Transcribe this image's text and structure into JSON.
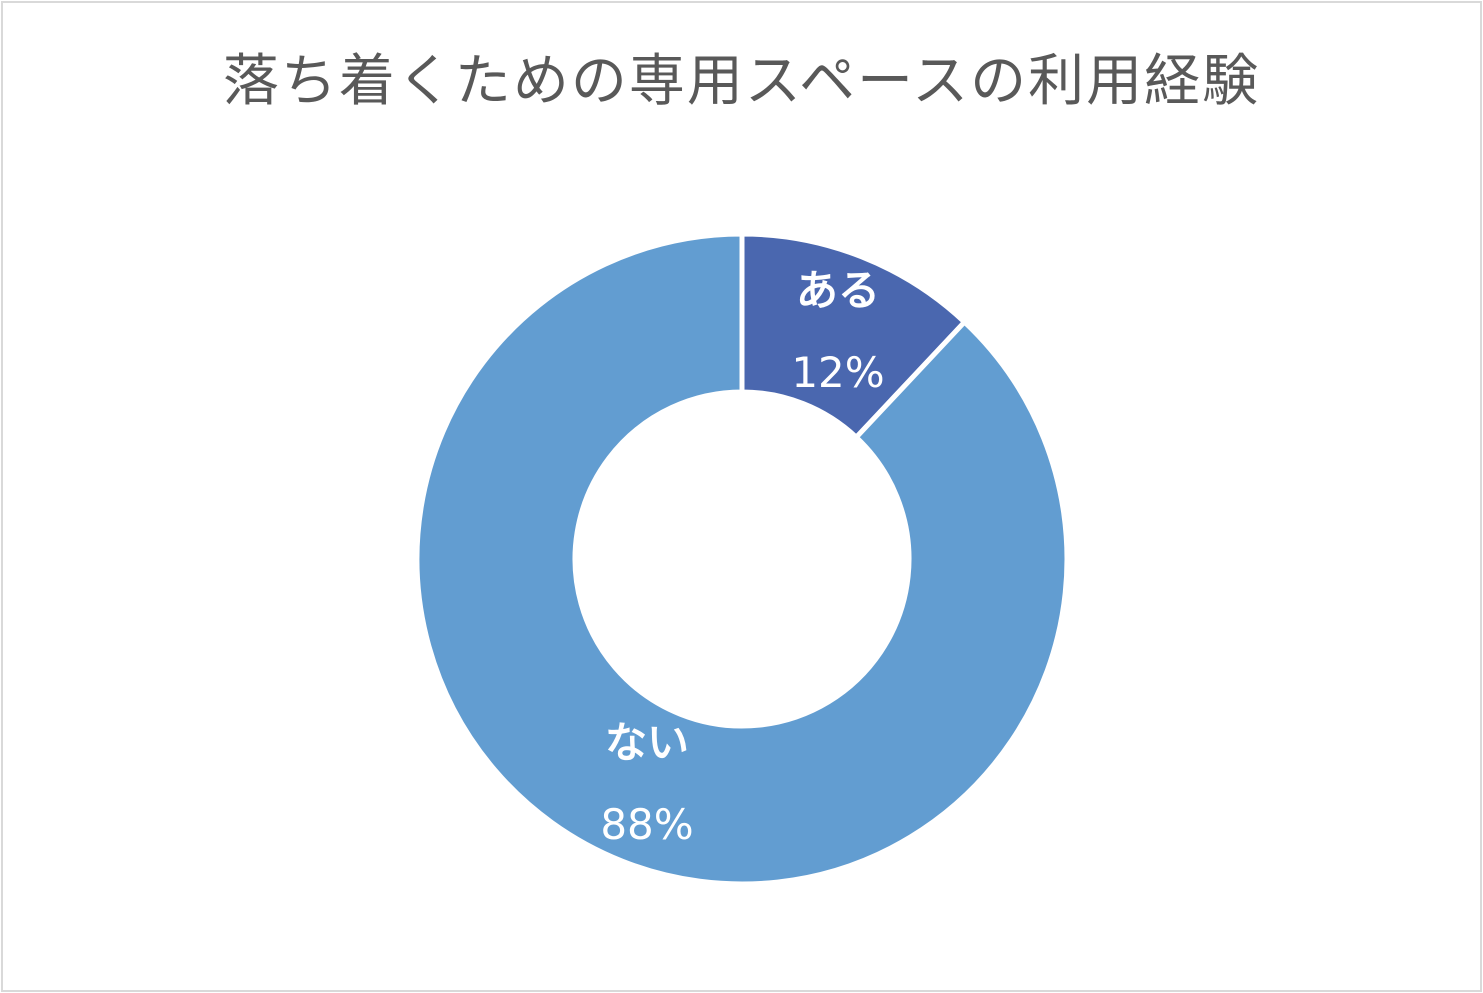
{
  "chart_data": {
    "type": "pie",
    "subtype": "donut",
    "title": "落ち着くための専用スペースの利用経験",
    "categories": [
      "ある",
      "ない"
    ],
    "values": [
      12,
      88
    ],
    "unit": "%",
    "data_labels": [
      "12%",
      "88%"
    ],
    "colors": [
      "#4A67AF",
      "#629DD1"
    ],
    "start_angle_deg": 0,
    "direction": "clockwise",
    "legend": "none",
    "labels_inside_slices": true
  },
  "labels": {
    "slice0": {
      "category": "ある",
      "percent": "12%"
    },
    "slice1": {
      "category": "ない",
      "percent": "88%"
    }
  },
  "colors": {
    "title_text": "#595959",
    "frame_border": "#D9D9D9",
    "separator": "#FFFFFF",
    "label_text": "#FFFFFF"
  }
}
